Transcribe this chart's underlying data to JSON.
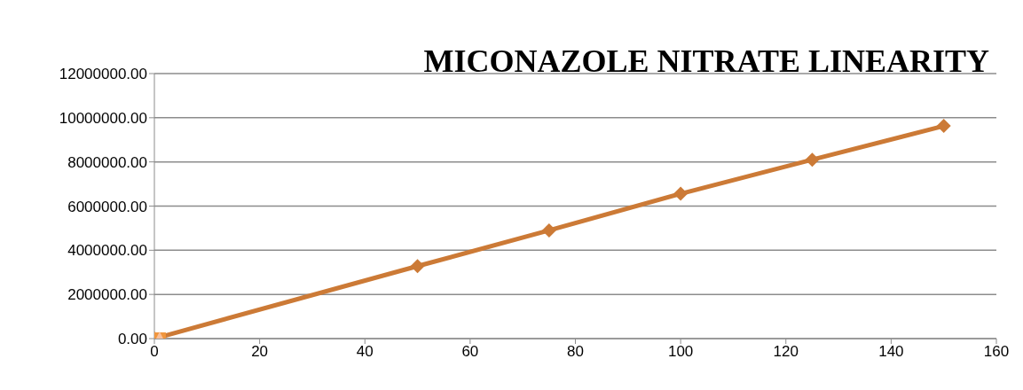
{
  "chart_data": {
    "type": "line",
    "title": "MICONAZOLE NITRATE  LINEARITY",
    "marker": "diamond",
    "grid": "y",
    "series": [
      {
        "color": "#cc7a36",
        "x": [
          0,
          50,
          75,
          100,
          125,
          150
        ],
        "values": [
          0,
          3280000,
          4900000,
          6560000,
          8100000,
          9630000
        ]
      },
      {
        "type": "scatter",
        "marker": "square",
        "color": "#f0963e",
        "x": [
          1
        ],
        "values": [
          0
        ]
      },
      {
        "type": "scatter",
        "marker": "triangle",
        "color": "#f9c19c",
        "x": [
          1
        ],
        "values": [
          0
        ]
      }
    ],
    "xlim": [
      0,
      160
    ],
    "xticks": [
      0,
      20,
      40,
      60,
      80,
      100,
      120,
      140,
      160
    ],
    "ylim": [
      0,
      12000000
    ],
    "yticks": [
      {
        "value": 0,
        "label": "0.00"
      },
      {
        "value": 2000000,
        "label": "2000000.00"
      },
      {
        "value": 4000000,
        "label": "4000000.00"
      },
      {
        "value": 6000000,
        "label": "6000000.00"
      },
      {
        "value": 8000000,
        "label": "8000000.00"
      },
      {
        "value": 10000000,
        "label": "10000000.00"
      },
      {
        "value": 12000000,
        "label": "12000000.00"
      }
    ]
  }
}
